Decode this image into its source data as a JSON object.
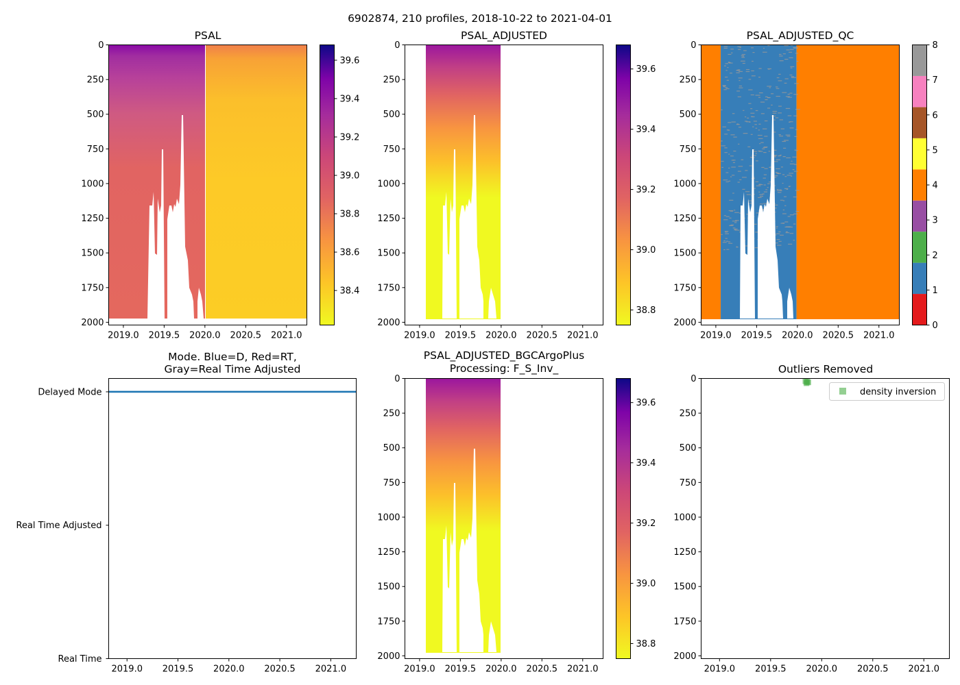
{
  "figure": {
    "suptitle": "6902874, 210 profiles, 2018-10-22 to 2021-04-01"
  },
  "chart_data": [
    {
      "id": "psal",
      "type": "heatmap",
      "title": "PSAL",
      "xlim": [
        2018.82,
        2021.25
      ],
      "ylim": [
        2020,
        0
      ],
      "xticks": [
        2019.0,
        2019.5,
        2020.0,
        2020.5,
        2021.0
      ],
      "xtick_labels": [
        "2019.0",
        "2019.5",
        "2020.0",
        "2020.5",
        "2021.0"
      ],
      "yticks": [
        0,
        250,
        500,
        750,
        1000,
        1250,
        1500,
        1750,
        2000
      ],
      "ytick_labels": [
        "0",
        "250",
        "500",
        "750",
        "1000",
        "1250",
        "1500",
        "1750",
        "2000"
      ],
      "colormap": "plasma_r",
      "colorbar": {
        "range": [
          38.22,
          39.68
        ],
        "ticks": [
          38.4,
          38.6,
          38.8,
          39.0,
          39.2,
          39.4,
          39.6
        ],
        "tick_labels": [
          "38.4",
          "38.6",
          "38.8",
          "39.0",
          "39.2",
          "39.4",
          "39.6"
        ]
      },
      "segments": [
        {
          "x0": 2018.82,
          "x1": 2019.99,
          "surface_value": 39.35,
          "deep_value": 38.9
        },
        {
          "x0": 2020.0,
          "x1": 2021.25,
          "surface_value": 38.6,
          "deep_value": 38.45
        }
      ]
    },
    {
      "id": "psal_adjusted",
      "type": "heatmap",
      "title": "PSAL_ADJUSTED",
      "xlim": [
        2018.82,
        2021.25
      ],
      "ylim": [
        2020,
        0
      ],
      "xticks": [
        2019.0,
        2019.5,
        2020.0,
        2020.5,
        2021.0
      ],
      "xtick_labels": [
        "2019.0",
        "2019.5",
        "2020.0",
        "2020.5",
        "2021.0"
      ],
      "yticks": [
        0,
        250,
        500,
        750,
        1000,
        1250,
        1500,
        1750,
        2000
      ],
      "ytick_labels": [
        "0",
        "250",
        "500",
        "750",
        "1000",
        "1250",
        "1500",
        "1750",
        "2000"
      ],
      "colormap": "plasma_r",
      "colorbar": {
        "range": [
          38.75,
          39.68
        ],
        "ticks": [
          38.8,
          39.0,
          39.2,
          39.4,
          39.6
        ],
        "tick_labels": [
          "38.8",
          "39.0",
          "39.2",
          "39.4",
          "39.6"
        ]
      },
      "segments": [
        {
          "x0": 2019.06,
          "x1": 2019.99,
          "surface_value": 39.45,
          "deep_value": 38.8
        }
      ]
    },
    {
      "id": "psal_adjusted_qc",
      "type": "heatmap",
      "title": "PSAL_ADJUSTED_QC",
      "xlim": [
        2018.82,
        2021.25
      ],
      "ylim": [
        2020,
        0
      ],
      "xticks": [
        2019.0,
        2019.5,
        2020.0,
        2020.5,
        2021.0
      ],
      "xtick_labels": [
        "2019.0",
        "2019.5",
        "2020.0",
        "2020.5",
        "2021.0"
      ],
      "yticks": [
        0,
        250,
        500,
        750,
        1000,
        1250,
        1500,
        1750,
        2000
      ],
      "ytick_labels": [
        "0",
        "250",
        "500",
        "750",
        "1000",
        "1250",
        "1500",
        "1750",
        "2000"
      ],
      "colorbar": {
        "range": [
          0,
          8
        ],
        "ticks": [
          0,
          1,
          2,
          3,
          4,
          5,
          6,
          7,
          8
        ],
        "tick_labels": [
          "0",
          "1",
          "2",
          "3",
          "4",
          "5",
          "6",
          "7",
          "8"
        ],
        "classes": [
          {
            "flag": 0,
            "color": "#e41a1c"
          },
          {
            "flag": 1,
            "color": "#377eb8"
          },
          {
            "flag": 2,
            "color": "#4daf4a"
          },
          {
            "flag": 3,
            "color": "#984ea3"
          },
          {
            "flag": 4,
            "color": "#ff7f00"
          },
          {
            "flag": 5,
            "color": "#ffff33"
          },
          {
            "flag": 6,
            "color": "#a65628"
          },
          {
            "flag": 7,
            "color": "#f781bf"
          },
          {
            "flag": 8,
            "color": "#999999"
          }
        ]
      },
      "segments": [
        {
          "x0": 2018.82,
          "x1": 2019.06,
          "flag": 4
        },
        {
          "x0": 2019.06,
          "x1": 2019.99,
          "flag": 1
        },
        {
          "x0": 2019.99,
          "x1": 2021.25,
          "flag": 4
        }
      ]
    },
    {
      "id": "mode",
      "type": "line",
      "title": "Mode. Blue=D, Red=RT,",
      "title_line2": "Gray=Real Time Adjusted",
      "xlim": [
        2018.82,
        2021.25
      ],
      "xticks": [
        2019.0,
        2019.5,
        2020.0,
        2020.5,
        2021.0
      ],
      "xtick_labels": [
        "2019.0",
        "2019.5",
        "2020.0",
        "2020.5",
        "2021.0"
      ],
      "ytick_labels": [
        "Real Time",
        "Real Time Adjusted",
        "Delayed Mode"
      ],
      "ylim": [
        0,
        2.1
      ],
      "series": [
        {
          "name": "Delayed Mode",
          "color": "#1f77b4",
          "x": [
            2018.82,
            2021.25
          ],
          "y": [
            2,
            2
          ]
        }
      ]
    },
    {
      "id": "psal_bgc",
      "type": "heatmap",
      "title": "PSAL_ADJUSTED_BGCArgoPlus",
      "title_line2": "Processing: F_S_Inv_",
      "xlim": [
        2018.82,
        2021.25
      ],
      "ylim": [
        2020,
        0
      ],
      "xticks": [
        2019.0,
        2019.5,
        2020.0,
        2020.5,
        2021.0
      ],
      "xtick_labels": [
        "2019.0",
        "2019.5",
        "2020.0",
        "2020.5",
        "2021.0"
      ],
      "yticks": [
        0,
        250,
        500,
        750,
        1000,
        1250,
        1500,
        1750,
        2000
      ],
      "ytick_labels": [
        "0",
        "250",
        "500",
        "750",
        "1000",
        "1250",
        "1500",
        "1750",
        "2000"
      ],
      "colormap": "plasma_r",
      "colorbar": {
        "range": [
          38.75,
          39.68
        ],
        "ticks": [
          38.8,
          39.0,
          39.2,
          39.4,
          39.6
        ],
        "tick_labels": [
          "38.8",
          "39.0",
          "39.2",
          "39.4",
          "39.6"
        ]
      },
      "segments": [
        {
          "x0": 2019.06,
          "x1": 2019.99,
          "surface_value": 39.45,
          "deep_value": 38.8
        }
      ]
    },
    {
      "id": "outliers",
      "type": "scatter",
      "title": "Outliers Removed",
      "xlim": [
        2018.82,
        2021.25
      ],
      "ylim": [
        2020,
        0
      ],
      "xticks": [
        2019.0,
        2019.5,
        2020.0,
        2020.5,
        2021.0
      ],
      "xtick_labels": [
        "2019.0",
        "2019.5",
        "2020.0",
        "2020.5",
        "2021.0"
      ],
      "yticks": [
        0,
        250,
        500,
        750,
        1000,
        1250,
        1500,
        1750,
        2000
      ],
      "ytick_labels": [
        "0",
        "250",
        "500",
        "750",
        "1000",
        "1250",
        "1500",
        "1750",
        "2000"
      ],
      "legend": {
        "label": "density inversion",
        "color": "#4daf4a",
        "loc": "upper right"
      },
      "series": [
        {
          "name": "density inversion",
          "color": "#4daf4a",
          "x": [
            2019.84,
            2019.85,
            2019.86,
            2019.87,
            2019.85,
            2019.86
          ],
          "y": [
            20,
            25,
            30,
            28,
            35,
            22
          ]
        }
      ]
    }
  ]
}
